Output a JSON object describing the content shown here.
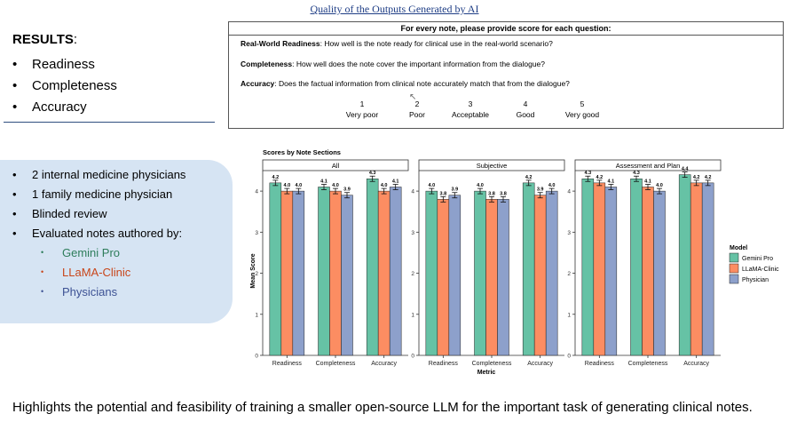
{
  "slide": {
    "title": "Quality of the Outputs Generated by AI",
    "results_label": "RESULTS",
    "results_colon": ":",
    "results_items": [
      "Readiness",
      "Completeness",
      "Accuracy"
    ],
    "bullet": "•",
    "questionnaire": {
      "header": "For every note, please provide score for each question:",
      "questions": [
        {
          "term": "Real-World Readiness",
          "text": ": How well is the note ready for clinical use in the real-world scenario?"
        },
        {
          "term": "Completeness",
          "text": ": How well does the note cover the important information from the dialogue?"
        },
        {
          "term": "Accuracy",
          "text": ": Does the factual information from clinical note accurately match that from the dialogue?"
        }
      ],
      "scale": [
        {
          "value": "1",
          "label": "Very poor"
        },
        {
          "value": "2",
          "label": "Poor"
        },
        {
          "value": "3",
          "label": "Acceptable"
        },
        {
          "value": "4",
          "label": "Good"
        },
        {
          "value": "5",
          "label": "Very good"
        }
      ]
    },
    "reviewers": [
      "2 internal medicine physicians",
      "1 family medicine physician",
      "Blinded review",
      "Evaluated notes authored by:"
    ],
    "authors": [
      {
        "label": "Gemini Pro",
        "color": "#2e7d5b"
      },
      {
        "label": "LLaMA-Clinic",
        "color": "#c8461b"
      },
      {
        "label": "Physicians",
        "color": "#3d5294"
      }
    ],
    "footer": "Highlights the potential and feasibility of training a smaller open-source LLM for the important task of generating clinical notes."
  },
  "chart_data": {
    "type": "bar",
    "title": "Scores by Note Sections",
    "xlabel": "Metric",
    "ylabel": "Mean Score",
    "ylim": [
      0,
      4.5
    ],
    "yticks": [
      0,
      1,
      2,
      3,
      4
    ],
    "categories": [
      "Readiness",
      "Completeness",
      "Accuracy"
    ],
    "legend_title": "Model",
    "legend_position": "right",
    "series_colors": [
      "#66c2a5",
      "#fc8d62",
      "#8da0cb"
    ],
    "series_names": [
      "Gemini Pro",
      "LLaMA-Clinic",
      "Physician"
    ],
    "panels": [
      {
        "title": "All",
        "series": [
          {
            "name": "Gemini Pro",
            "values": [
              4.2,
              4.1,
              4.3
            ],
            "labels": [
              "4.2",
              "4.1",
              "4.3"
            ]
          },
          {
            "name": "LLaMA-Clinic",
            "values": [
              4.0,
              4.0,
              4.0
            ],
            "labels": [
              "4.0",
              "4.0",
              "4.0"
            ]
          },
          {
            "name": "Physician",
            "values": [
              4.0,
              3.9,
              4.1
            ],
            "labels": [
              "4.0",
              "3.9",
              "4.1"
            ]
          }
        ]
      },
      {
        "title": "Subjective",
        "series": [
          {
            "name": "Gemini Pro",
            "values": [
              4.0,
              4.0,
              4.2
            ],
            "labels": [
              "4.0",
              "4.0",
              "4.2"
            ]
          },
          {
            "name": "LLaMA-Clinic",
            "values": [
              3.8,
              3.8,
              3.9
            ],
            "labels": [
              "3.8",
              "3.8",
              "3.9"
            ]
          },
          {
            "name": "Physician",
            "values": [
              3.9,
              3.8,
              4.0
            ],
            "labels": [
              "3.9",
              "3.8",
              "4.0"
            ]
          }
        ]
      },
      {
        "title": "Assessment and Plan",
        "series": [
          {
            "name": "Gemini Pro",
            "values": [
              4.3,
              4.3,
              4.4
            ],
            "labels": [
              "4.3",
              "4.3",
              "4.4"
            ]
          },
          {
            "name": "LLaMA-Clinic",
            "values": [
              4.2,
              4.1,
              4.2
            ],
            "labels": [
              "4.2",
              "4.1",
              "4.2"
            ]
          },
          {
            "name": "Physician",
            "values": [
              4.1,
              4.0,
              4.2
            ],
            "labels": [
              "4.1",
              "4.0",
              "4.2"
            ]
          }
        ]
      }
    ]
  }
}
